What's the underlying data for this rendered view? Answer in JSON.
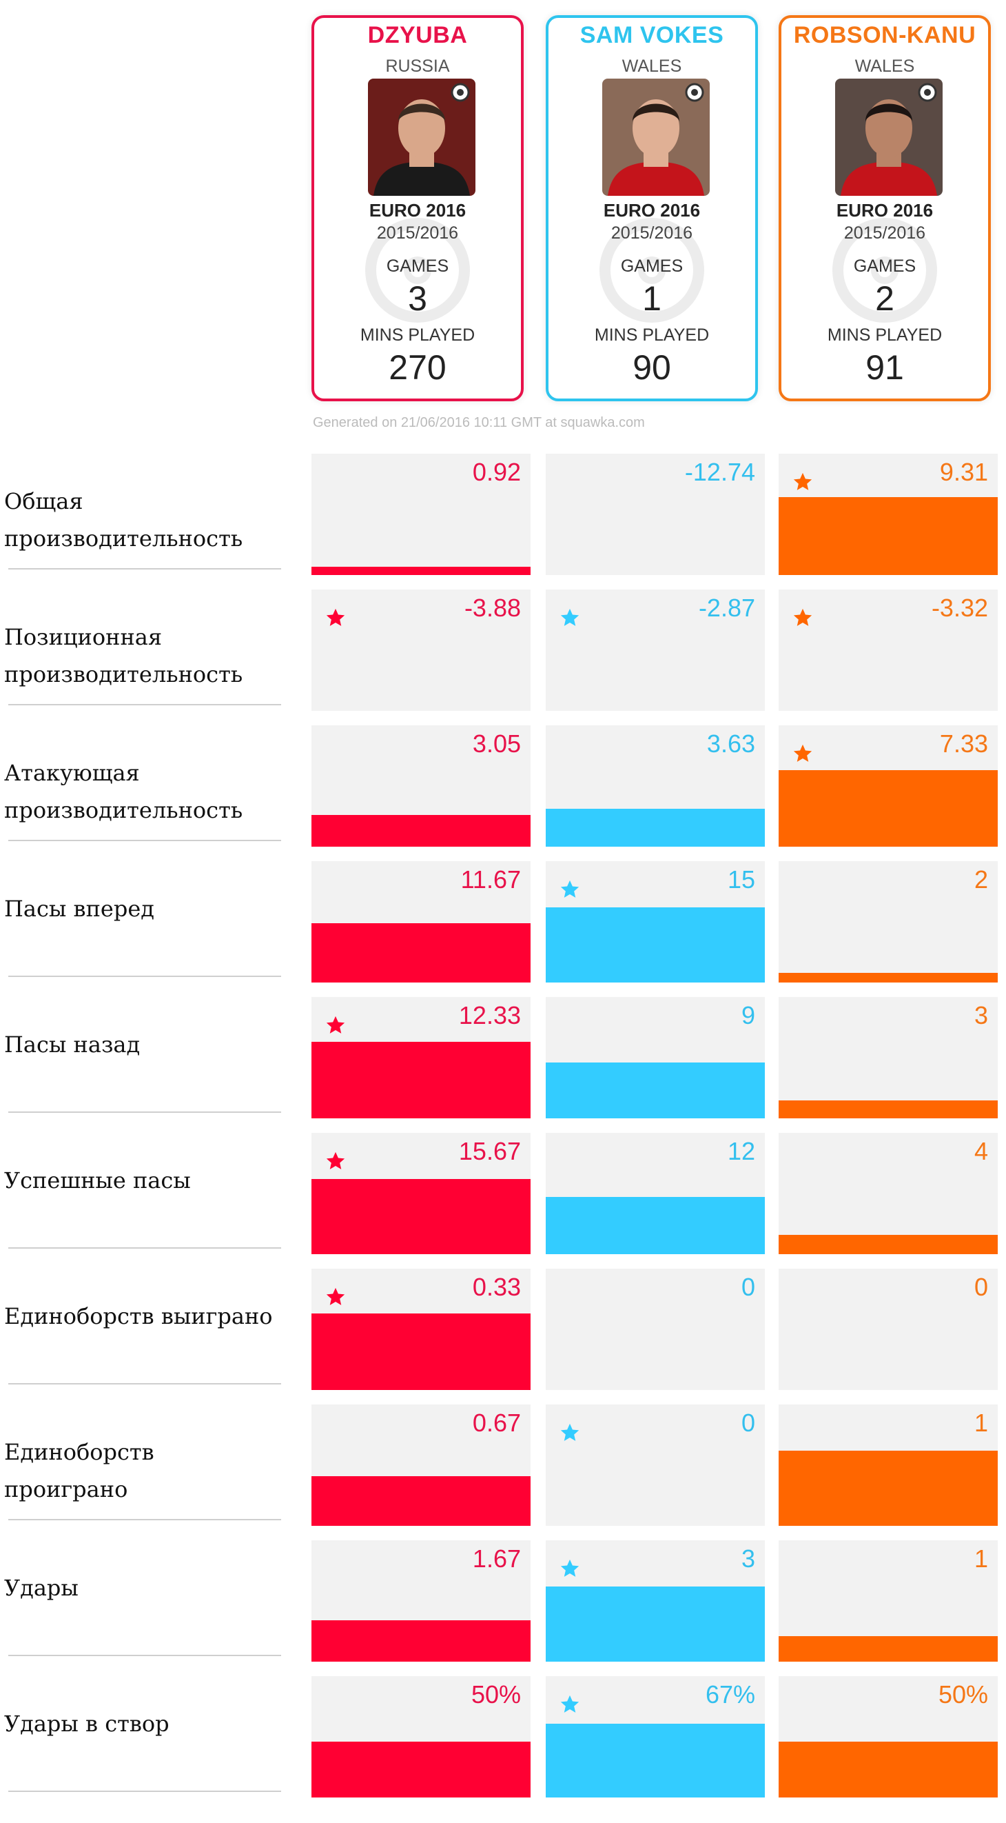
{
  "players": [
    {
      "name": "DZYUBA",
      "country": "RUSSIA",
      "competition": "EURO 2016",
      "season": "2015/2016",
      "games_label": "GAMES",
      "games": "3",
      "mins_label": "MINS PLAYED",
      "mins": "270",
      "color": "#e8124a",
      "photo_bg": "#6b1d1a",
      "shirt": "#1a1a1a",
      "skin": "#d9a78a",
      "hair": "#3a2a20"
    },
    {
      "name": "SAM VOKES",
      "country": "WALES",
      "competition": "EURO 2016",
      "season": "2015/2016",
      "games_label": "GAMES",
      "games": "1",
      "mins_label": "MINS PLAYED",
      "mins": "90",
      "color": "#2ec4ee",
      "photo_bg": "#8a6a58",
      "shirt": "#c4141b",
      "skin": "#e0b095",
      "hair": "#2a1d16"
    },
    {
      "name": "ROBSON-KANU",
      "country": "WALES",
      "competition": "EURO 2016",
      "season": "2015/2016",
      "games_label": "GAMES",
      "games": "2",
      "mins_label": "MINS PLAYED",
      "mins": "91",
      "color": "#f57716",
      "photo_bg": "#5a4a44",
      "shirt": "#c4141b",
      "skin": "#b98468",
      "hair": "#1c1412"
    }
  ],
  "generated_text": "Generated on 21/06/2016 10:11 GMT at squawka.com",
  "chart_data": {
    "type": "bar",
    "series_names": [
      "DZYUBA",
      "SAM VOKES",
      "ROBSON-KANU"
    ],
    "series_colors": [
      "#ff0033",
      "#33ccff",
      "#ff6600"
    ],
    "text_colors": [
      "#e8124a",
      "#33bfee",
      "#f57716"
    ],
    "rows": [
      {
        "label": "Общая производительность",
        "values": [
          "0.92",
          "-12.74",
          "9.31"
        ],
        "fill": [
          0.06,
          0,
          0.64
        ],
        "star": [
          false,
          false,
          true
        ]
      },
      {
        "label": "Позиционная производительность",
        "values": [
          "-3.88",
          "-2.87",
          "-3.32"
        ],
        "fill": [
          0,
          0,
          0
        ],
        "star": [
          true,
          true,
          true
        ]
      },
      {
        "label": "Атакующая производительность",
        "values": [
          "3.05",
          "3.63",
          "7.33"
        ],
        "fill": [
          0.26,
          0.31,
          0.63
        ],
        "star": [
          false,
          false,
          true
        ]
      },
      {
        "label": "Пасы вперед",
        "values": [
          "11.67",
          "15",
          "2"
        ],
        "fill": [
          0.49,
          0.62,
          0.08
        ],
        "star": [
          false,
          true,
          false
        ]
      },
      {
        "label": "Пасы назад",
        "values": [
          "12.33",
          "9",
          "3"
        ],
        "fill": [
          0.63,
          0.46,
          0.15
        ],
        "star": [
          true,
          false,
          false
        ]
      },
      {
        "label": "Успешные пасы",
        "values": [
          "15.67",
          "12",
          "4"
        ],
        "fill": [
          0.62,
          0.47,
          0.16
        ],
        "star": [
          true,
          false,
          false
        ]
      },
      {
        "label": "Единоборств выиграно",
        "values": [
          "0.33",
          "0",
          "0"
        ],
        "fill": [
          0.63,
          0,
          0
        ],
        "star": [
          true,
          false,
          false
        ]
      },
      {
        "label": "Единоборств проиграно",
        "values": [
          "0.67",
          "0",
          "1"
        ],
        "fill": [
          0.41,
          0,
          0.62
        ],
        "star": [
          false,
          true,
          false
        ]
      },
      {
        "label": "Удары",
        "values": [
          "1.67",
          "3",
          "1"
        ],
        "fill": [
          0.34,
          0.62,
          0.21
        ],
        "star": [
          false,
          true,
          false
        ]
      },
      {
        "label": "Удары в створ",
        "values": [
          "50%",
          "67%",
          "50%"
        ],
        "fill": [
          0.46,
          0.61,
          0.46
        ],
        "star": [
          false,
          true,
          false
        ]
      }
    ]
  }
}
